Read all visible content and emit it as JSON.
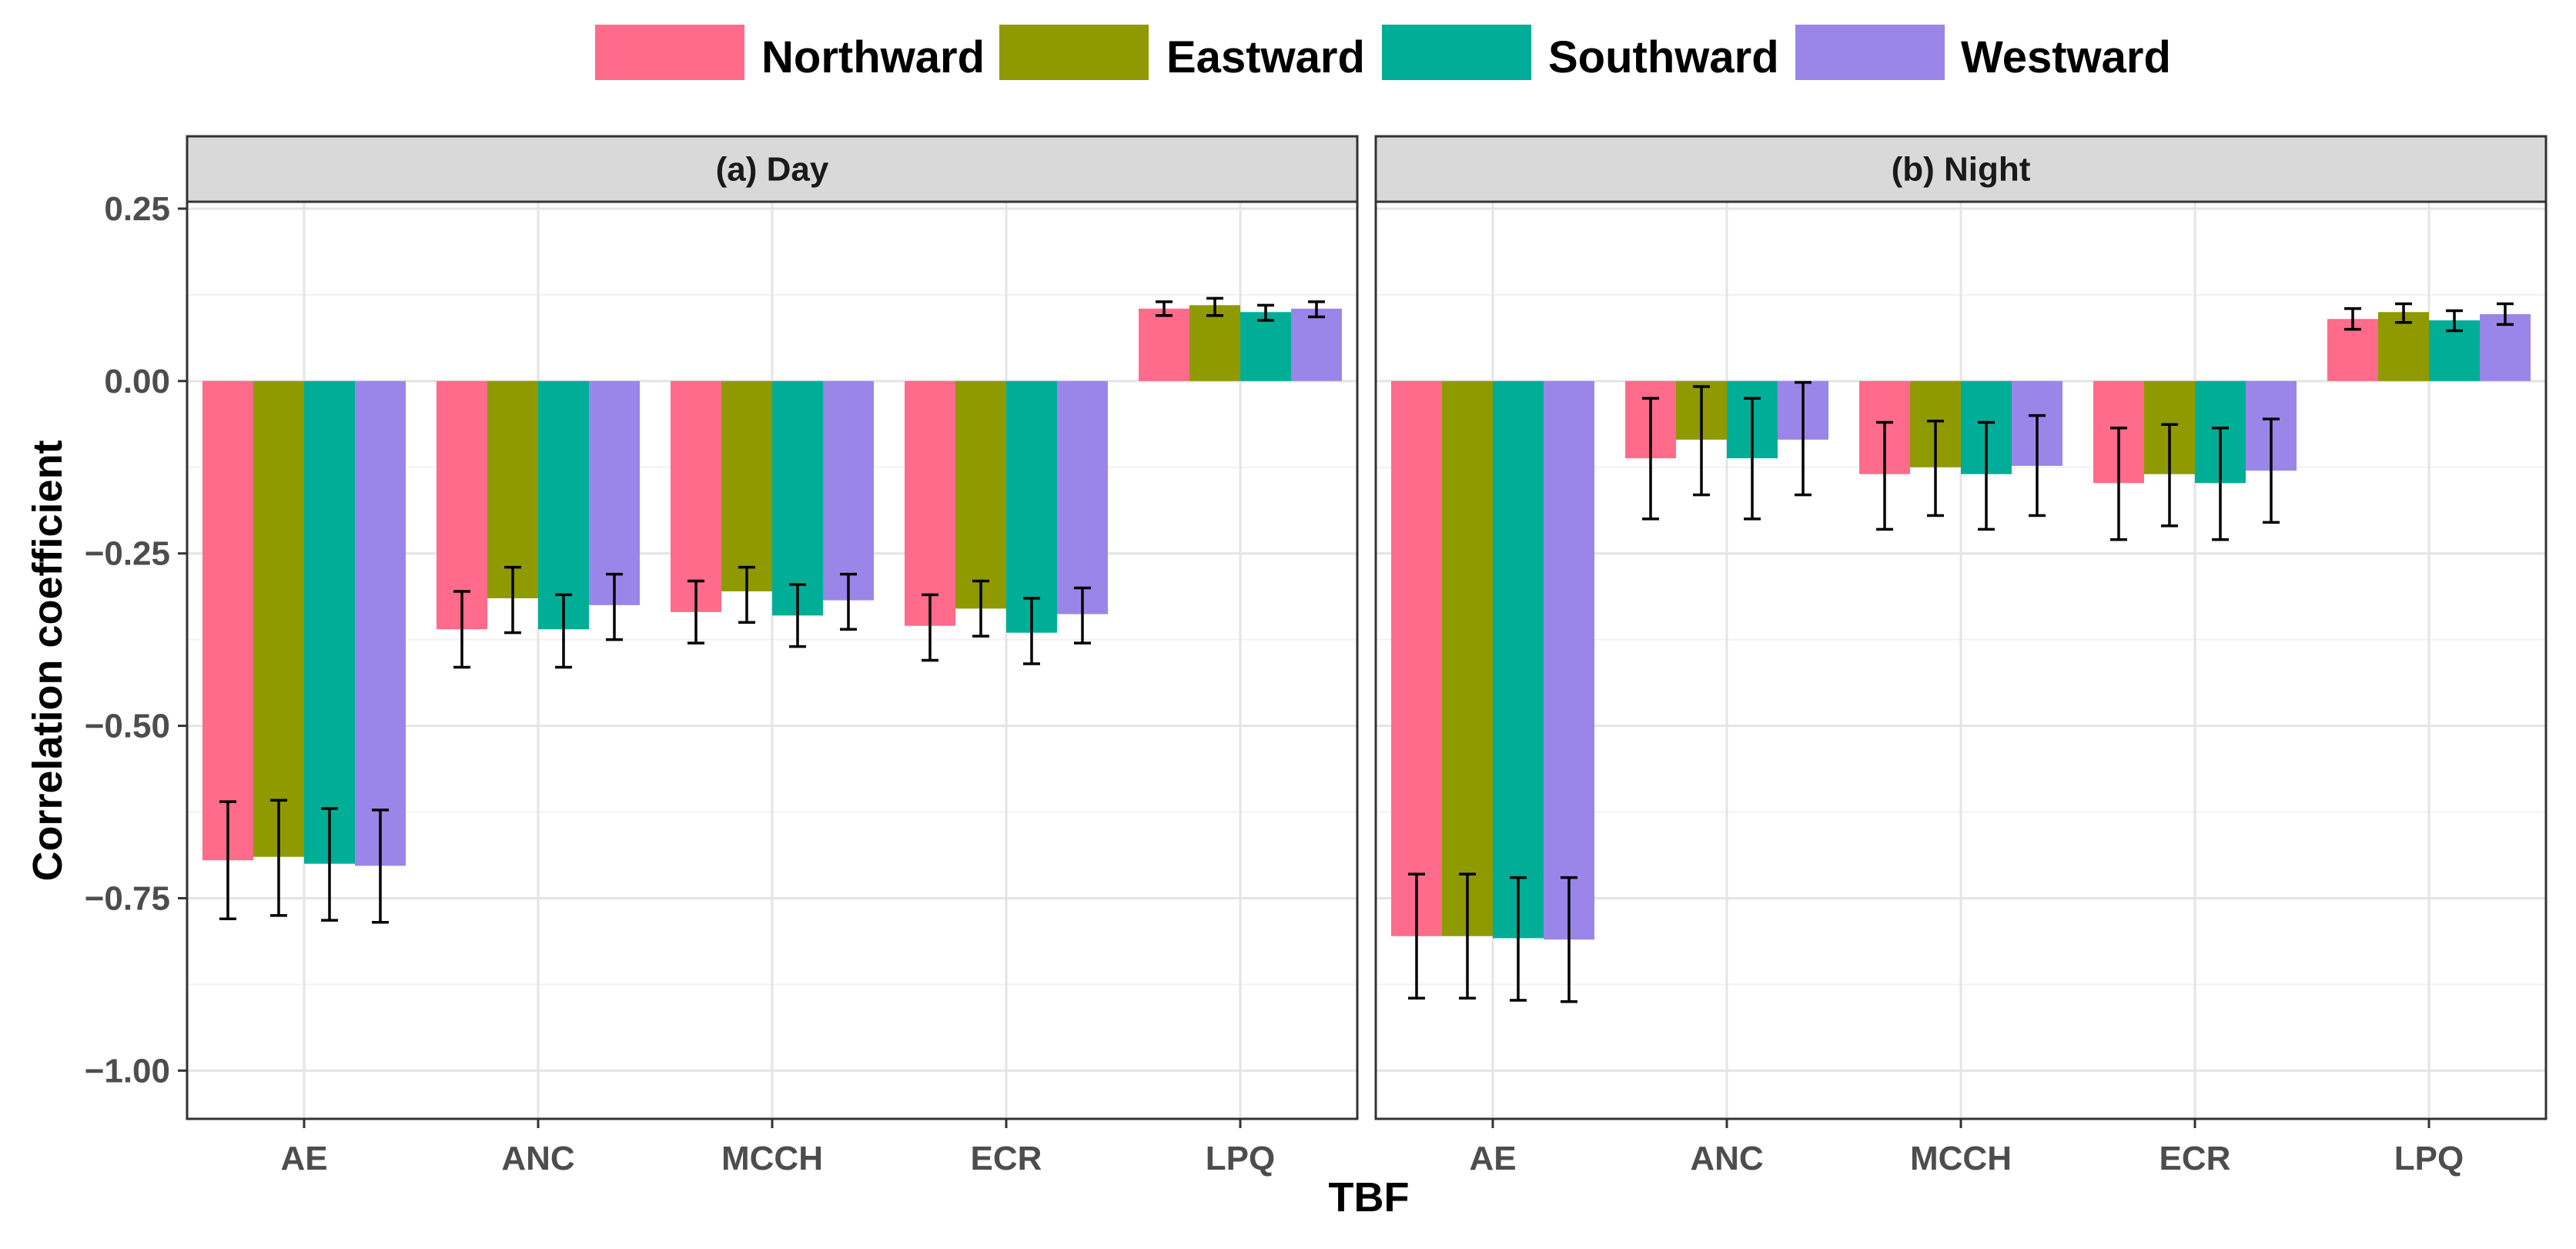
{
  "chart_data": {
    "type": "bar",
    "xlabel": "TBF",
    "ylabel": "Correlation coefficient",
    "ylim": [
      -1.07,
      0.26
    ],
    "yticks": [
      0.25,
      0.0,
      -0.25,
      -0.5,
      -0.75,
      -1.0
    ],
    "ytick_labels": [
      "0.25",
      "0.00",
      "−0.25",
      "−0.50",
      "−0.75",
      "−1.00"
    ],
    "grid": true,
    "legend_position": "top",
    "categories": [
      "AE",
      "ANC",
      "MCCH",
      "ECR",
      "LPQ"
    ],
    "series_names": [
      "Northward",
      "Eastward",
      "Southward",
      "Westward"
    ],
    "colors": [
      "#FF6B8B",
      "#8E9A00",
      "#00AE98",
      "#9A86E8"
    ],
    "panels": [
      {
        "title": "(a) Day",
        "values": [
          [
            -0.695,
            -0.36,
            -0.335,
            -0.355,
            0.105
          ],
          [
            -0.69,
            -0.315,
            -0.305,
            -0.33,
            0.11
          ],
          [
            -0.7,
            -0.36,
            -0.34,
            -0.365,
            0.1
          ],
          [
            -0.703,
            -0.325,
            -0.318,
            -0.338,
            0.105
          ]
        ],
        "err_low": [
          [
            -0.78,
            -0.415,
            -0.38,
            -0.405,
            0.095
          ],
          [
            -0.775,
            -0.365,
            -0.35,
            -0.37,
            0.095
          ],
          [
            -0.782,
            -0.415,
            -0.385,
            -0.41,
            0.088
          ],
          [
            -0.785,
            -0.375,
            -0.36,
            -0.38,
            0.093
          ]
        ],
        "err_high": [
          [
            -0.61,
            -0.305,
            -0.29,
            -0.31,
            0.115
          ],
          [
            -0.608,
            -0.27,
            -0.27,
            -0.29,
            0.12
          ],
          [
            -0.62,
            -0.31,
            -0.295,
            -0.315,
            0.11
          ],
          [
            -0.622,
            -0.28,
            -0.28,
            -0.3,
            0.115
          ]
        ]
      },
      {
        "title": "(b) Night",
        "values": [
          [
            -0.805,
            -0.112,
            -0.135,
            -0.148,
            0.09
          ],
          [
            -0.805,
            -0.085,
            -0.125,
            -0.135,
            0.1
          ],
          [
            -0.808,
            -0.112,
            -0.135,
            -0.148,
            0.088
          ],
          [
            -0.81,
            -0.085,
            -0.123,
            -0.13,
            0.097
          ]
        ],
        "err_low": [
          [
            -0.895,
            -0.2,
            -0.215,
            -0.23,
            0.075
          ],
          [
            -0.895,
            -0.165,
            -0.195,
            -0.21,
            0.085
          ],
          [
            -0.898,
            -0.2,
            -0.215,
            -0.23,
            0.073
          ],
          [
            -0.9,
            -0.165,
            -0.195,
            -0.205,
            0.082
          ]
        ],
        "err_high": [
          [
            -0.715,
            -0.025,
            -0.06,
            -0.068,
            0.105
          ],
          [
            -0.715,
            -0.008,
            -0.058,
            -0.063,
            0.112
          ],
          [
            -0.72,
            -0.025,
            -0.06,
            -0.068,
            0.102
          ],
          [
            -0.72,
            -0.002,
            -0.05,
            -0.055,
            0.112
          ]
        ]
      }
    ]
  }
}
